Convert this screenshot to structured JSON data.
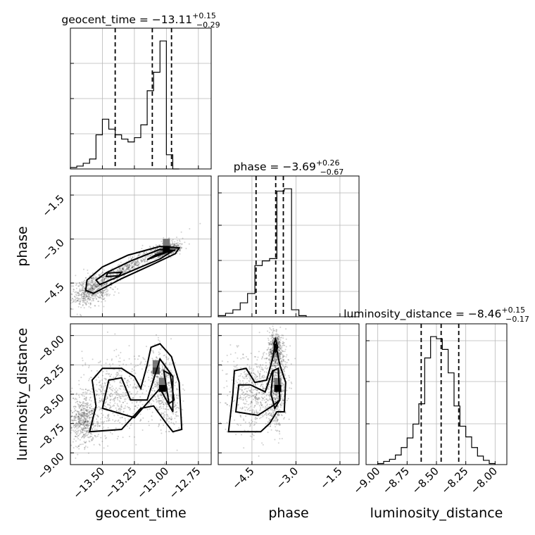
{
  "chart_data": {
    "type": "corner",
    "parameters": [
      "geocent_time",
      "phase",
      "luminosity_distance"
    ],
    "axis_labels": {
      "x": [
        "geocent_time",
        "phase",
        "luminosity_distance"
      ],
      "y": [
        "phase",
        "luminosity_distance"
      ]
    },
    "ranges": {
      "geocent_time": [
        -13.75,
        -12.65
      ],
      "phase": [
        -5.65,
        -0.85
      ],
      "luminosity_distance": [
        -9.1,
        -7.9
      ]
    },
    "ticks": {
      "geocent_time": [
        -13.5,
        -13.25,
        -13.0,
        -12.75
      ],
      "phase": [
        -4.5,
        -3.0,
        -1.5
      ],
      "luminosity_distance": [
        -9.0,
        -8.75,
        -8.5,
        -8.25,
        -8.0
      ]
    },
    "tick_labels": {
      "geocent_time": [
        "−13.50",
        "−13.25",
        "−13.00",
        "−12.75"
      ],
      "phase": [
        "−4.5",
        "−3.0",
        "−1.5"
      ],
      "luminosity_distance": [
        "−9.00",
        "−8.75",
        "−8.50",
        "−8.25",
        "−8.00"
      ]
    },
    "titles": [
      {
        "param": "geocent_time",
        "prefix": "geocent_time = −13.11",
        "plus": "+0.15",
        "minus": "−0.29"
      },
      {
        "param": "phase",
        "prefix": "phase = −3.69",
        "plus": "+0.26",
        "minus": "−0.67"
      },
      {
        "param": "luminosity_distance",
        "prefix": "luminosity_distance = −8.46",
        "plus": "+0.15",
        "minus": "−0.17"
      }
    ],
    "quantiles": {
      "geocent_time": [
        -13.4,
        -13.11,
        -12.96
      ],
      "phase": [
        -4.36,
        -3.69,
        -3.43
      ],
      "luminosity_distance": [
        -8.63,
        -8.46,
        -8.31
      ]
    },
    "histograms": {
      "geocent_time": {
        "edges": [
          -13.75,
          -13.7,
          -13.65,
          -13.6,
          -13.55,
          -13.5,
          -13.45,
          -13.4,
          -13.35,
          -13.3,
          -13.25,
          -13.2,
          -13.15,
          -13.1,
          -13.05,
          -13.0,
          -12.95,
          -12.9
        ],
        "counts": [
          1,
          2,
          4,
          7,
          24,
          35,
          28,
          24,
          21,
          19,
          22,
          31,
          55,
          68,
          90,
          10,
          0
        ]
      },
      "phase": {
        "edges": [
          -5.65,
          -5.4,
          -5.15,
          -4.9,
          -4.65,
          -4.4,
          -4.15,
          -3.9,
          -3.65,
          -3.4,
          -3.15,
          -2.9,
          -2.65
        ],
        "counts": [
          1,
          3,
          6,
          12,
          20,
          44,
          48,
          50,
          108,
          110,
          6,
          1
        ]
      },
      "luminosity_distance": {
        "edges": [
          -9.0,
          -8.95,
          -8.9,
          -8.85,
          -8.8,
          -8.75,
          -8.7,
          -8.65,
          -8.6,
          -8.55,
          -8.5,
          -8.45,
          -8.4,
          -8.35,
          -8.3,
          -8.25,
          -8.2,
          -8.15,
          -8.1,
          -8.05,
          -8.0
        ],
        "counts": [
          1,
          3,
          5,
          9,
          16,
          25,
          38,
          57,
          100,
          120,
          118,
          108,
          86,
          55,
          36,
          26,
          16,
          8,
          4,
          1
        ]
      }
    },
    "contours_2d": [
      {
        "x": "geocent_time",
        "y": "phase",
        "levels": [
          [
            [
              -13.57,
              -4.85
            ],
            [
              -13.35,
              -4.35
            ],
            [
              -13.1,
              -3.85
            ],
            [
              -12.93,
              -3.5
            ],
            [
              -12.9,
              -3.3
            ],
            [
              -13.05,
              -3.25
            ],
            [
              -13.3,
              -3.55
            ],
            [
              -13.5,
              -3.95
            ],
            [
              -13.62,
              -4.4
            ],
            [
              -13.63,
              -4.75
            ]
          ],
          [
            [
              -13.52,
              -4.55
            ],
            [
              -13.28,
              -4.1
            ],
            [
              -13.05,
              -3.68
            ],
            [
              -12.95,
              -3.4
            ],
            [
              -13.05,
              -3.35
            ],
            [
              -13.28,
              -3.75
            ],
            [
              -13.47,
              -4.15
            ],
            [
              -13.55,
              -4.4
            ]
          ],
          [
            [
              -13.37,
              -4.25
            ],
            [
              -13.35,
              -4.13
            ],
            [
              -13.46,
              -4.16
            ],
            [
              -13.47,
              -4.28
            ]
          ],
          [
            [
              -13.15,
              -3.7
            ],
            [
              -12.98,
              -3.42
            ],
            [
              -12.93,
              -3.38
            ],
            [
              -13.08,
              -3.53
            ]
          ]
        ]
      },
      {
        "x": "geocent_time",
        "y": "luminosity_distance",
        "levels": [
          [
            [
              -13.6,
              -8.82
            ],
            [
              -13.55,
              -8.6
            ],
            [
              -13.58,
              -8.38
            ],
            [
              -13.5,
              -8.28
            ],
            [
              -13.35,
              -8.28
            ],
            [
              -13.25,
              -8.35
            ],
            [
              -13.2,
              -8.45
            ],
            [
              -13.15,
              -8.25
            ],
            [
              -13.12,
              -8.1
            ],
            [
              -13.05,
              -8.07
            ],
            [
              -12.96,
              -8.18
            ],
            [
              -12.9,
              -8.4
            ],
            [
              -12.88,
              -8.8
            ],
            [
              -12.95,
              -8.82
            ],
            [
              -13.0,
              -8.75
            ],
            [
              -13.1,
              -8.6
            ],
            [
              -13.2,
              -8.62
            ],
            [
              -13.35,
              -8.8
            ]
          ],
          [
            [
              -13.5,
              -8.62
            ],
            [
              -13.45,
              -8.38
            ],
            [
              -13.35,
              -8.36
            ],
            [
              -13.28,
              -8.55
            ],
            [
              -13.15,
              -8.55
            ],
            [
              -13.05,
              -8.2
            ],
            [
              -12.95,
              -8.35
            ],
            [
              -12.95,
              -8.65
            ],
            [
              -13.05,
              -8.45
            ],
            [
              -13.25,
              -8.7
            ]
          ],
          [
            [
              -13.02,
              -8.3
            ],
            [
              -12.97,
              -8.33
            ],
            [
              -12.94,
              -8.55
            ],
            [
              -12.98,
              -8.58
            ]
          ]
        ]
      },
      {
        "x": "phase",
        "y": "luminosity_distance",
        "levels": [
          [
            [
              -5.3,
              -8.82
            ],
            [
              -5.15,
              -8.5
            ],
            [
              -5.1,
              -8.3
            ],
            [
              -4.7,
              -8.28
            ],
            [
              -4.4,
              -8.4
            ],
            [
              -4.0,
              -8.38
            ],
            [
              -3.8,
              -8.2
            ],
            [
              -3.7,
              -8.07
            ],
            [
              -3.55,
              -8.25
            ],
            [
              -3.35,
              -8.4
            ],
            [
              -3.4,
              -8.65
            ],
            [
              -3.65,
              -8.65
            ],
            [
              -3.9,
              -8.75
            ],
            [
              -4.2,
              -8.82
            ],
            [
              -4.7,
              -8.82
            ]
          ],
          [
            [
              -5.05,
              -8.65
            ],
            [
              -4.95,
              -8.42
            ],
            [
              -4.55,
              -8.42
            ],
            [
              -4.05,
              -8.48
            ],
            [
              -3.8,
              -8.3
            ],
            [
              -3.6,
              -8.28
            ],
            [
              -3.55,
              -8.55
            ],
            [
              -3.8,
              -8.6
            ],
            [
              -4.3,
              -8.68
            ]
          ],
          [
            [
              -3.78,
              -8.3
            ],
            [
              -3.6,
              -8.28
            ],
            [
              -3.55,
              -8.55
            ],
            [
              -3.72,
              -8.62
            ],
            [
              -3.85,
              -8.5
            ]
          ],
          [
            [
              -3.75,
              -8.07
            ],
            [
              -3.7,
              -8.03
            ],
            [
              -3.62,
              -8.1
            ],
            [
              -3.7,
              -8.14
            ]
          ]
        ]
      }
    ],
    "density_peaks": {
      "geocent_time-phase": [
        [
          -13.0,
          -3.35
        ]
      ],
      "geocent_time-luminosity_distance": [
        [
          -13.03,
          -8.45
        ],
        [
          -13.08,
          -8.3
        ]
      ],
      "phase-luminosity_distance": [
        [
          -3.62,
          -8.45
        ]
      ]
    }
  }
}
